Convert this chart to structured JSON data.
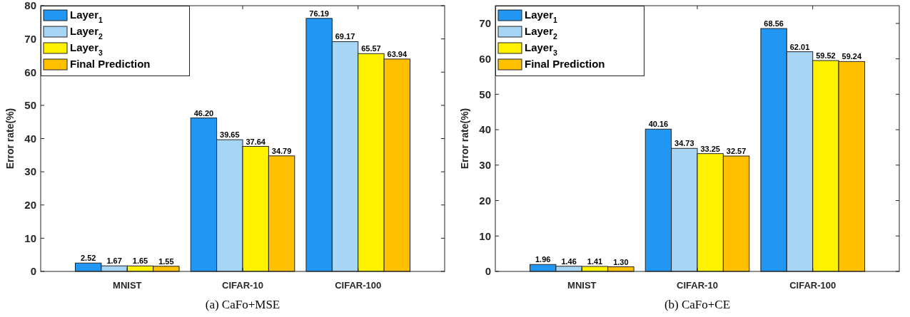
{
  "chart_data": [
    {
      "type": "bar",
      "title": "(a) CaFo+MSE",
      "ylabel": "Error rate(%)",
      "categories": [
        "MNIST",
        "CIFAR-10",
        "CIFAR-100"
      ],
      "series": [
        {
          "name": "Layer$_{1}$",
          "color": "#2196f3",
          "values": [
            2.52,
            46.2,
            76.19
          ]
        },
        {
          "name": "Layer$_{2}$",
          "color": "#a6d5f5",
          "values": [
            1.67,
            39.65,
            69.17
          ]
        },
        {
          "name": "Layer$_{3}$",
          "color": "#fff200",
          "values": [
            1.65,
            37.64,
            65.57
          ]
        },
        {
          "name": "Final Prediction",
          "color": "#ffc000",
          "values": [
            1.55,
            34.79,
            63.94
          ]
        }
      ],
      "value_labels": [
        [
          "2.52",
          "46.20",
          "76.19"
        ],
        [
          "1.67",
          "39.65",
          "69.17"
        ],
        [
          "1.65",
          "37.64",
          "65.57"
        ],
        [
          "1.55",
          "34.79",
          "63.94"
        ]
      ],
      "ylim": [
        0,
        80
      ],
      "yticks": [
        0,
        10,
        20,
        30,
        40,
        50,
        60,
        70,
        80
      ],
      "legend": "top left",
      "grid": false
    },
    {
      "type": "bar",
      "title": "(b) CaFo+CE",
      "ylabel": "Error rate(%)",
      "categories": [
        "MNIST",
        "CIFAR-10",
        "CIFAR-100"
      ],
      "series": [
        {
          "name": "Layer$_{1}$",
          "color": "#2196f3",
          "values": [
            1.96,
            40.16,
            68.56
          ]
        },
        {
          "name": "Layer$_{2}$",
          "color": "#a6d5f5",
          "values": [
            1.46,
            34.73,
            62.01
          ]
        },
        {
          "name": "Layer$_{3}$",
          "color": "#fff200",
          "values": [
            1.41,
            33.25,
            59.52
          ]
        },
        {
          "name": "Final Prediction",
          "color": "#ffc000",
          "values": [
            1.3,
            32.57,
            59.24
          ]
        }
      ],
      "value_labels": [
        [
          "1.96",
          "40.16",
          "68.56"
        ],
        [
          "1.46",
          "34.73",
          "62.01"
        ],
        [
          "1.41",
          "33.25",
          "59.52"
        ],
        [
          "1.30",
          "32.57",
          "59.24"
        ]
      ],
      "ylim": [
        0,
        75
      ],
      "yticks": [
        0,
        10,
        20,
        30,
        40,
        50,
        60,
        70
      ],
      "legend": "top left",
      "grid": false
    }
  ]
}
